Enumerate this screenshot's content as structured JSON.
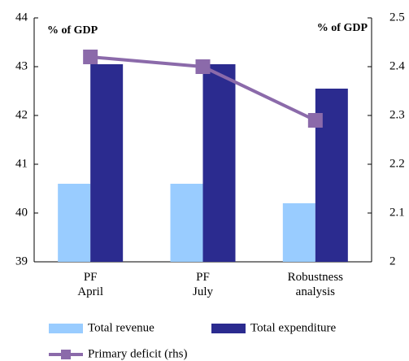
{
  "chart_data": {
    "type": "bar",
    "categories": [
      "PF April",
      "PF July",
      "Robustness analysis"
    ],
    "series": [
      {
        "name": "Total revenue",
        "color": "#99ccff",
        "values": [
          40.6,
          40.6,
          40.2
        ]
      },
      {
        "name": "Total expenditure",
        "color": "#2b2b8f",
        "values": [
          43.05,
          43.05,
          42.55
        ]
      },
      {
        "name": "Primary deficit (rhs)",
        "color": "#8b6aaa",
        "type": "line",
        "axis": "y2",
        "values": [
          2.42,
          2.4,
          2.29
        ]
      }
    ],
    "annotations": [
      "% of GDP",
      "% of GDP"
    ],
    "ylim": [
      39,
      44
    ],
    "yticks": [
      39,
      40,
      41,
      42,
      43,
      44
    ],
    "y2lim": [
      2,
      2.5
    ],
    "y2ticks": [
      2,
      2.1,
      2.2,
      2.3,
      2.4,
      2.5
    ]
  }
}
